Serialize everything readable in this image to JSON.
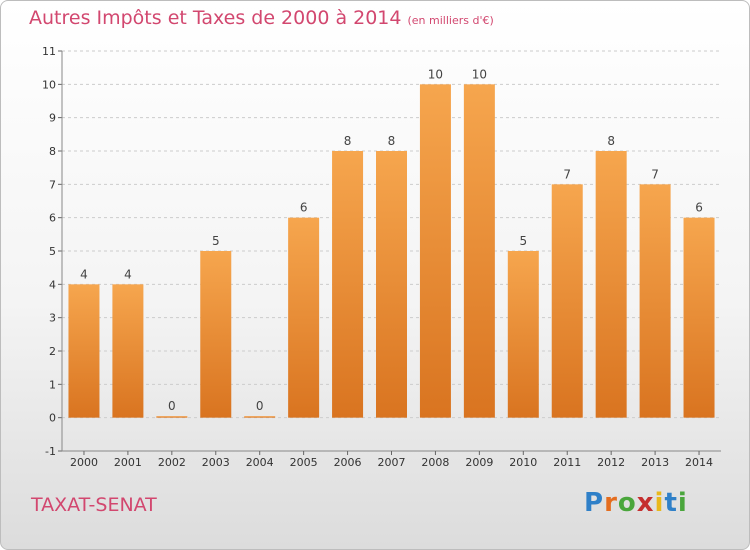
{
  "title": "Autres Impôts et Taxes de 2000 à 2014",
  "unit_note": "(en milliers d'€)",
  "town": "TAXAT-SENAT",
  "logo": [
    "P",
    "r",
    "o",
    "x",
    "i",
    "t",
    "i"
  ],
  "colors": {
    "bar_top": "#f6a64e",
    "bar_bottom": "#d97420",
    "title": "#d2476f",
    "grid": "#cccccc"
  },
  "chart_data": {
    "type": "bar",
    "title": "Autres Impôts et Taxes de 2000 à 2014",
    "categories": [
      "2000",
      "2001",
      "2002",
      "2003",
      "2004",
      "2005",
      "2006",
      "2007",
      "2008",
      "2009",
      "2010",
      "2011",
      "2012",
      "2013",
      "2014"
    ],
    "values": [
      4,
      4,
      0,
      5,
      0,
      6,
      8,
      8,
      10,
      10,
      5,
      7,
      8,
      7,
      6
    ],
    "data_labels": [
      "4",
      "4",
      "0",
      "5",
      "0",
      "6",
      "8",
      "8",
      "10",
      "10",
      "5",
      "7",
      "8",
      "7",
      "6"
    ],
    "ylim": [
      -1,
      11
    ],
    "yticks": [
      -1,
      0,
      1,
      2,
      3,
      4,
      5,
      6,
      7,
      8,
      9,
      10,
      11
    ],
    "ytick_labels": [
      "-1",
      "0",
      "1",
      "2",
      "3",
      "4",
      "5",
      "6",
      "7",
      "8",
      "9",
      "10",
      "11"
    ],
    "grid": "horizontal dashed",
    "legend": "none"
  }
}
